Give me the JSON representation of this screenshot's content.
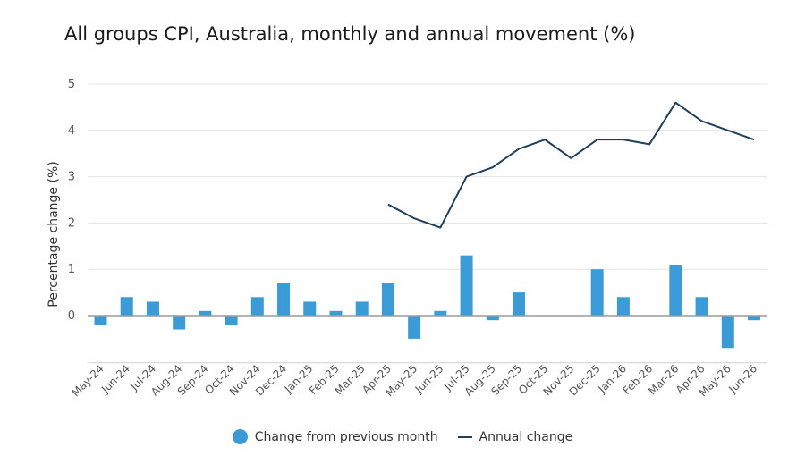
{
  "chart_data": {
    "type": "bar",
    "title": "All groups CPI, Australia, monthly and annual movement (%)",
    "xlabel": "",
    "ylabel": "Percentage change (%)",
    "ylim": [
      -1,
      5
    ],
    "yticks": [
      0,
      1,
      2,
      3,
      4,
      5
    ],
    "grid": true,
    "legend_position": "bottom",
    "categories": [
      "May-24",
      "Jun-24",
      "Jul-24",
      "Aug-24",
      "Sep-24",
      "Oct-24",
      "Nov-24",
      "Dec-24",
      "Jan-25",
      "Feb-25",
      "Mar-25",
      "Apr-25",
      "May-25",
      "Jun-25",
      "Jul-25",
      "Aug-25",
      "Sep-25",
      "Oct-25",
      "Nov-25",
      "Dec-25",
      "Jan-26",
      "Feb-26",
      "Mar-26",
      "Apr-26",
      "May-26",
      "Jun-26"
    ],
    "series": [
      {
        "name": "Change from previous month",
        "type": "bar",
        "color": "#3a9bd6",
        "values": [
          -0.2,
          0.4,
          0.3,
          -0.3,
          0.1,
          -0.2,
          0.4,
          0.7,
          0.3,
          0.1,
          0.3,
          0.7,
          -0.5,
          0.1,
          1.3,
          -0.1,
          0.5,
          0.0,
          0.0,
          1.0,
          0.4,
          0.0,
          1.1,
          0.4,
          -0.7,
          -0.1
        ]
      },
      {
        "name": "Annual change",
        "type": "line",
        "color": "#1f3f5e",
        "values": [
          null,
          null,
          null,
          null,
          null,
          null,
          null,
          null,
          null,
          null,
          null,
          2.4,
          2.1,
          1.9,
          3.0,
          3.2,
          3.6,
          3.8,
          3.4,
          3.8,
          3.8,
          3.7,
          4.6,
          4.2,
          4.0,
          3.8
        ]
      }
    ]
  }
}
